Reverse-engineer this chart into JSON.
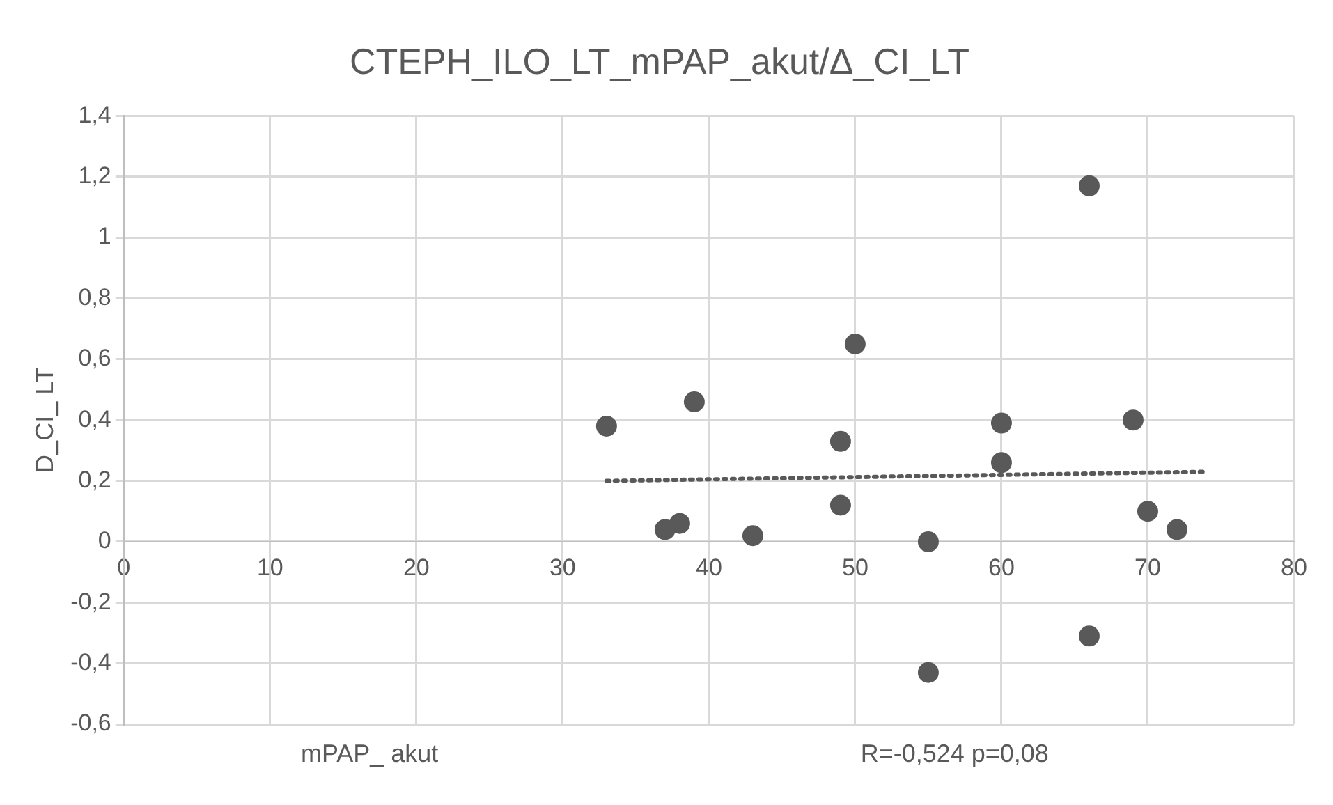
{
  "chart_data": {
    "type": "scatter",
    "title": "CTEPH_ILO_LT_mPAP_akut/Δ_CI_LT",
    "xlabel": "mPAP_ akut",
    "ylabel": "D_CI_ LT",
    "annotations": [
      "R=-0,524 p=0,08"
    ],
    "series": [
      {
        "color": "#595959",
        "x": [
          33,
          37,
          38,
          39,
          43,
          49,
          49,
          50,
          55,
          55,
          60,
          60,
          66,
          66,
          69,
          70,
          72
        ],
        "values": [
          0.38,
          0.04,
          0.06,
          0.46,
          0.02,
          0.33,
          0.12,
          0.65,
          0.0,
          -0.43,
          0.39,
          0.26,
          1.17,
          -0.31,
          0.4,
          0.1,
          0.04
        ],
        "marker": "circle"
      },
      {
        "type": "line",
        "color": "#595959",
        "x": [
          33,
          74
        ],
        "values": [
          0.2,
          0.23
        ],
        "line_style": "dotted",
        "marker": "none"
      }
    ],
    "xlim": [
      0,
      80
    ],
    "xticks": [
      0,
      10,
      20,
      30,
      40,
      50,
      60,
      70,
      80
    ],
    "ylim": [
      -0.6,
      1.4
    ],
    "yticks": [
      {
        "value": -0.6,
        "label": "-0,6"
      },
      {
        "value": -0.4,
        "label": "-0,4"
      },
      {
        "value": -0.2,
        "label": "-0,2"
      },
      0,
      {
        "value": 0.2,
        "label": "0,2"
      },
      {
        "value": 0.4,
        "label": "0,4"
      },
      {
        "value": 0.6,
        "label": "0,6"
      },
      {
        "value": 0.8,
        "label": "0,8"
      },
      1,
      {
        "value": 1.2,
        "label": "1,2"
      },
      {
        "value": 1.4,
        "label": "1,4"
      }
    ],
    "grid": true,
    "legend": false
  }
}
